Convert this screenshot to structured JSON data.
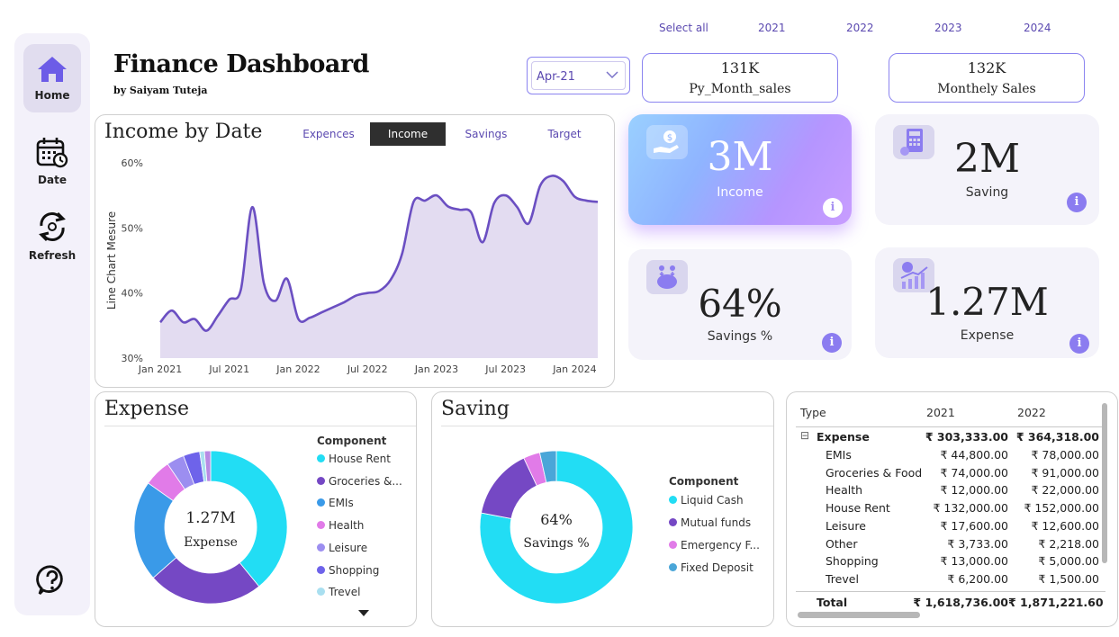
{
  "sidebar": {
    "items": [
      {
        "label": "Home"
      },
      {
        "label": "Date"
      },
      {
        "label": "Refresh"
      }
    ]
  },
  "header": {
    "title": "Finance Dashboard",
    "subtitle": "by Saiyam Tuteja"
  },
  "year_slicer": [
    "Select all",
    "2021",
    "2022",
    "2023",
    "2024"
  ],
  "month_dropdown": {
    "value": "Apr-21"
  },
  "kpi_top": [
    {
      "value": "131K",
      "label": "Py_Month_sales"
    },
    {
      "value": "132K",
      "label": "Monthely Sales"
    }
  ],
  "income_panel": {
    "title": "Income by Date",
    "tabs": [
      "Expences",
      "Income",
      "Savings",
      "Target"
    ],
    "active_tab": "Income"
  },
  "cards": {
    "income": {
      "value": "3M",
      "label": "Income"
    },
    "saving": {
      "value": "2M",
      "label": "Saving"
    },
    "savings_pct": {
      "value": "64%",
      "label": "Savings %"
    },
    "expense": {
      "value": "1.27M",
      "label": "Expense"
    }
  },
  "info_glyph": "i",
  "expense_panel": {
    "title": "Expense",
    "center_value": "1.27M",
    "center_label": "Expense",
    "legend_title": "Component",
    "legend": [
      "House Rent",
      "Groceries &...",
      "EMIs",
      "Health",
      "Leisure",
      "Shopping",
      "Trevel"
    ]
  },
  "saving_panel": {
    "title": "Saving",
    "center_value": "64%",
    "center_label": "Savings %",
    "legend_title": "Component",
    "legend": [
      "Liquid Cash",
      "Mutual funds",
      "Emergency F...",
      "Fixed Deposit"
    ]
  },
  "table": {
    "headers": [
      "Type",
      "2021",
      "2022"
    ],
    "group": {
      "expand_icon": "⊟",
      "label": "Expense",
      "v2021": "₹ 303,333.00",
      "v2022": "₹ 364,318.00"
    },
    "rows": [
      {
        "label": "EMIs",
        "v2021": "₹ 44,800.00",
        "v2022": "₹ 78,000.00"
      },
      {
        "label": "Groceries & Food",
        "v2021": "₹ 74,000.00",
        "v2022": "₹ 91,000.00"
      },
      {
        "label": "Health",
        "v2021": "₹ 12,000.00",
        "v2022": "₹ 22,000.00"
      },
      {
        "label": "House Rent",
        "v2021": "₹ 132,000.00",
        "v2022": "₹ 152,000.00"
      },
      {
        "label": "Leisure",
        "v2021": "₹ 17,600.00",
        "v2022": "₹ 12,600.00"
      },
      {
        "label": "Other",
        "v2021": "₹ 3,733.00",
        "v2022": "₹ 2,218.00"
      },
      {
        "label": "Shopping",
        "v2021": "₹ 13,000.00",
        "v2022": "₹ 5,000.00"
      },
      {
        "label": "Trevel",
        "v2021": "₹ 6,200.00",
        "v2022": "₹ 1,500.00"
      }
    ],
    "total": {
      "label": "Total",
      "v2021": "₹ 1,618,736.00",
      "v2022": "₹ 1,871,221.60"
    }
  },
  "chart_data": [
    {
      "type": "area",
      "ylabel": "Line Chart Mesure",
      "y_unit": "%",
      "ylim": [
        30,
        60
      ],
      "y_ticks": [
        "30%",
        "40%",
        "50%",
        "60%"
      ],
      "x_ticks": [
        "Jan 2021",
        "Jul 2021",
        "Jan 2022",
        "Jul 2022",
        "Jan 2023",
        "Jul 2023",
        "Jan 2024"
      ],
      "grid": false,
      "color": "#6b4fc2",
      "fill": "#e3dcf1",
      "x": [
        "2021-01",
        "2021-02",
        "2021-03",
        "2021-04",
        "2021-05",
        "2021-06",
        "2021-07",
        "2021-08",
        "2021-09",
        "2021-10",
        "2021-11",
        "2021-12",
        "2022-01",
        "2022-02",
        "2022-03",
        "2022-04",
        "2022-05",
        "2022-06",
        "2022-07",
        "2022-08",
        "2022-09",
        "2022-10",
        "2022-11",
        "2022-12",
        "2023-01",
        "2023-02",
        "2023-03",
        "2023-04",
        "2023-05",
        "2023-06",
        "2023-07",
        "2023-08",
        "2023-09",
        "2023-10",
        "2023-11",
        "2023-12",
        "2024-01",
        "2024-02",
        "2024-03"
      ],
      "values": [
        35.5,
        37.3,
        35.5,
        36.0,
        34.2,
        36.5,
        39.0,
        40.5,
        53.2,
        41.5,
        38.8,
        42.2,
        36.0,
        36.2,
        37.0,
        37.8,
        38.6,
        39.6,
        40.0,
        40.3,
        42.0,
        46.0,
        54.0,
        54.2,
        55.0,
        53.3,
        52.8,
        52.4,
        47.8,
        53.8,
        55.0,
        53.2,
        50.7,
        56.5,
        58.0,
        57.2,
        54.8,
        54.2,
        54.0
      ]
    },
    {
      "type": "pie",
      "title": "Expense",
      "categories": [
        "House Rent",
        "Groceries & Food",
        "EMIs",
        "Health",
        "Leisure",
        "Shopping",
        "Trevel",
        "Other"
      ],
      "values": [
        39.1,
        24.4,
        21.3,
        5.7,
        3.7,
        3.5,
        1.0,
        1.3
      ],
      "colors": [
        "#22ddf4",
        "#7548c4",
        "#3a9ae8",
        "#e17be8",
        "#9c8ef0",
        "#6e63ea",
        "#a9dff0",
        "#b88ae4"
      ]
    },
    {
      "type": "pie",
      "title": "Saving",
      "categories": [
        "Liquid Cash",
        "Mutual funds",
        "Emergency Fund",
        "Fixed Deposit"
      ],
      "values": [
        78.0,
        15.0,
        3.5,
        3.5
      ],
      "colors": [
        "#22ddf4",
        "#7548c4",
        "#e17be8",
        "#4aa6d8"
      ]
    }
  ]
}
